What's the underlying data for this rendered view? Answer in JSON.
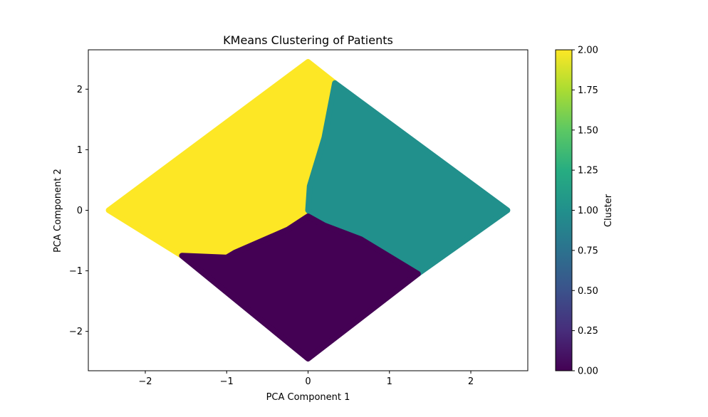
{
  "chart_data": {
    "type": "scatter",
    "title": "KMeans Clustering of Patients",
    "xlabel": "PCA Component 1",
    "ylabel": "PCA Component 2",
    "xlim": [
      -2.7,
      2.7
    ],
    "ylim": [
      -2.65,
      2.65
    ],
    "xticks": [
      -2,
      -1,
      0,
      1,
      2
    ],
    "yticks": [
      -2,
      -1,
      0,
      1,
      2
    ],
    "xtick_labels": [
      "−2",
      "−1",
      "0",
      "1",
      "2"
    ],
    "ytick_labels": [
      "−2",
      "−1",
      "0",
      "1",
      "2"
    ],
    "grid": false,
    "colorbar": {
      "label": "Cluster",
      "range": [
        0,
        2
      ],
      "colormap": "viridis",
      "ticks": [
        0.0,
        0.25,
        0.5,
        0.75,
        1.0,
        1.25,
        1.5,
        1.75,
        2.0
      ],
      "tick_labels": [
        "0.00",
        "0.25",
        "0.50",
        "0.75",
        "1.00",
        "1.25",
        "1.50",
        "1.75",
        "2.00"
      ]
    },
    "series": [
      {
        "cluster": 2,
        "color": "#fde725",
        "region": "left wedge of diamond",
        "boundary": [
          [
            -2.45,
            0.0
          ],
          [
            0.0,
            2.45
          ],
          [
            0.33,
            2.1
          ],
          [
            0.2,
            1.2
          ],
          [
            0.02,
            0.4
          ],
          [
            0.0,
            0.0
          ],
          [
            -0.25,
            -0.32
          ],
          [
            -0.9,
            -0.7
          ],
          [
            -1.0,
            -0.78
          ],
          [
            -1.55,
            -0.75
          ]
        ]
      },
      {
        "cluster": 1,
        "color": "#21908c",
        "region": "right wedge of diamond",
        "boundary": [
          [
            0.33,
            2.1
          ],
          [
            2.45,
            0.0
          ],
          [
            1.35,
            -1.05
          ],
          [
            0.65,
            -0.48
          ],
          [
            0.2,
            -0.25
          ],
          [
            0.0,
            0.0
          ],
          [
            0.02,
            0.4
          ],
          [
            0.2,
            1.2
          ]
        ]
      },
      {
        "cluster": 0,
        "color": "#440154",
        "region": "bottom wedge of diamond",
        "boundary": [
          [
            -1.55,
            -0.75
          ],
          [
            -1.0,
            -0.78
          ],
          [
            -0.9,
            -0.7
          ],
          [
            -0.25,
            -0.32
          ],
          [
            0.0,
            -0.1
          ],
          [
            0.2,
            -0.25
          ],
          [
            0.65,
            -0.48
          ],
          [
            1.35,
            -1.05
          ],
          [
            0.0,
            -2.45
          ]
        ]
      }
    ]
  }
}
